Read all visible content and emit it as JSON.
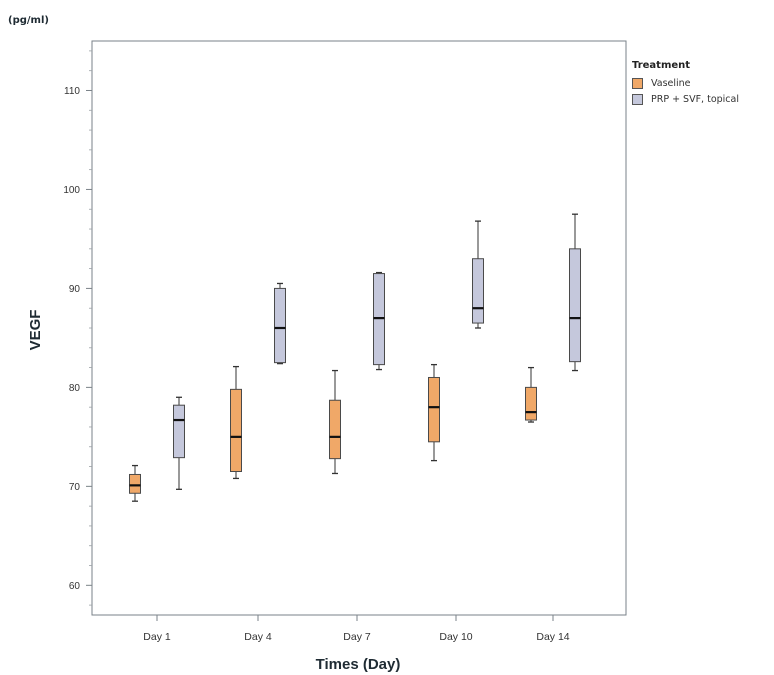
{
  "chart_data": {
    "type": "box",
    "unit_label": "(pg/ml)",
    "xlabel": "Times (Day)",
    "ylabel": "VEGF",
    "ylim": [
      57,
      115
    ],
    "yticks": [
      60,
      70,
      80,
      90,
      100,
      110
    ],
    "categories": [
      "Day 1",
      "Day 4",
      "Day 7",
      "Day 10",
      "Day 14"
    ],
    "legend": {
      "title": "Treatment",
      "position": "right"
    },
    "grid": false,
    "series": [
      {
        "name": "Vaseline",
        "color": "#f0a868",
        "boxes": [
          {
            "min": 68.5,
            "q1": 69.3,
            "median": 70.1,
            "q3": 71.2,
            "max": 72.1
          },
          {
            "min": 70.8,
            "q1": 71.5,
            "median": 75.0,
            "q3": 79.8,
            "max": 82.1
          },
          {
            "min": 71.3,
            "q1": 72.8,
            "median": 75.0,
            "q3": 78.7,
            "max": 81.7
          },
          {
            "min": 72.6,
            "q1": 74.5,
            "median": 78.0,
            "q3": 81.0,
            "max": 82.3
          },
          {
            "min": 76.5,
            "q1": 76.7,
            "median": 77.5,
            "q3": 80.0,
            "max": 82.0
          }
        ]
      },
      {
        "name": "PRP + SVF, topical",
        "color": "#c5c8dc",
        "boxes": [
          {
            "min": 69.7,
            "q1": 72.9,
            "median": 76.7,
            "q3": 78.2,
            "max": 79.0
          },
          {
            "min": 82.4,
            "q1": 82.5,
            "median": 86.0,
            "q3": 90.0,
            "max": 90.5
          },
          {
            "min": 81.8,
            "q1": 82.3,
            "median": 87.0,
            "q3": 91.5,
            "max": 91.6
          },
          {
            "min": 86.0,
            "q1": 86.5,
            "median": 88.0,
            "q3": 93.0,
            "max": 96.8
          },
          {
            "min": 81.7,
            "q1": 82.6,
            "median": 87.0,
            "q3": 94.0,
            "max": 97.5
          }
        ]
      }
    ]
  }
}
